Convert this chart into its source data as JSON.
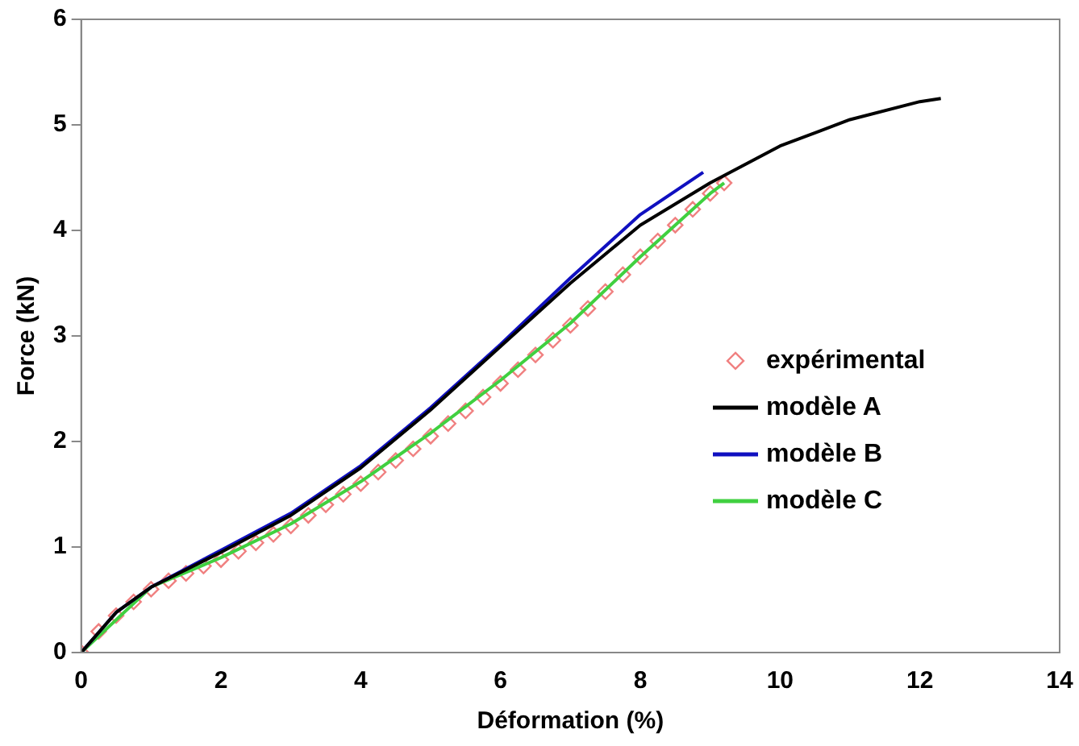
{
  "chart_data": {
    "type": "line",
    "xlabel": "Déformation (%)",
    "ylabel": "Force (kN)",
    "xlim": [
      0,
      14
    ],
    "xticks": [
      0,
      2,
      4,
      6,
      8,
      10,
      12,
      14
    ],
    "ylim": [
      0,
      6
    ],
    "yticks": [
      0,
      1,
      2,
      3,
      4,
      5,
      6
    ],
    "grid": false,
    "legend": "right",
    "series": [
      {
        "name": "expérimental",
        "type": "scatter",
        "marker": "diamond",
        "color": "#f08080",
        "x": [
          0,
          0.25,
          0.5,
          0.75,
          1,
          1.25,
          1.5,
          1.75,
          2,
          2.25,
          2.5,
          2.75,
          3,
          3.25,
          3.5,
          3.75,
          4,
          4.25,
          4.5,
          4.75,
          5,
          5.25,
          5.5,
          5.75,
          6,
          6.25,
          6.5,
          6.75,
          7,
          7.25,
          7.5,
          7.75,
          8,
          8.25,
          8.5,
          8.75,
          9,
          9.2
        ],
        "values": [
          0,
          0.2,
          0.35,
          0.48,
          0.6,
          0.68,
          0.75,
          0.82,
          0.88,
          0.96,
          1.04,
          1.12,
          1.2,
          1.3,
          1.4,
          1.5,
          1.6,
          1.71,
          1.82,
          1.93,
          2.05,
          2.17,
          2.29,
          2.42,
          2.55,
          2.68,
          2.82,
          2.96,
          3.1,
          3.26,
          3.42,
          3.58,
          3.75,
          3.9,
          4.05,
          4.2,
          4.35,
          4.45
        ]
      },
      {
        "name": "modèle A",
        "line_style": "solid",
        "color": "#000000",
        "x": [
          0,
          0.5,
          1,
          2,
          3,
          4,
          5,
          6,
          7,
          8,
          9,
          10,
          11,
          12,
          12.3
        ],
        "values": [
          0,
          0.38,
          0.62,
          0.95,
          1.3,
          1.75,
          2.3,
          2.9,
          3.5,
          4.05,
          4.45,
          4.8,
          5.05,
          5.22,
          5.25
        ]
      },
      {
        "name": "modèle B",
        "line_style": "solid",
        "color": "#1010c0",
        "x": [
          0,
          0.5,
          1,
          2,
          3,
          4,
          5,
          6,
          7,
          8,
          8.9
        ],
        "values": [
          0,
          0.38,
          0.62,
          0.97,
          1.32,
          1.77,
          2.32,
          2.92,
          3.55,
          4.15,
          4.55
        ]
      },
      {
        "name": "modèle C",
        "line_style": "solid",
        "color": "#40d040",
        "x": [
          0,
          1,
          2,
          3,
          4,
          5,
          6,
          7,
          8,
          9,
          9.2
        ],
        "values": [
          0,
          0.62,
          0.9,
          1.22,
          1.62,
          2.08,
          2.58,
          3.12,
          3.75,
          4.35,
          4.45
        ]
      }
    ]
  }
}
